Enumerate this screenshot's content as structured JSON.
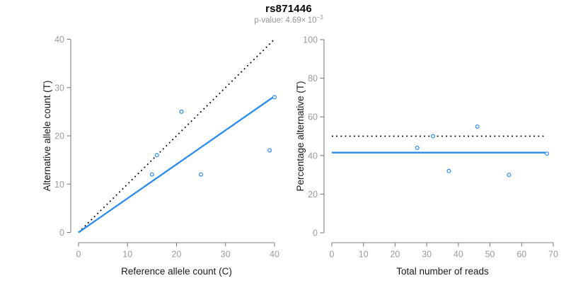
{
  "header": {
    "title": "rs871446",
    "p_value_label": "p-value: 4.69× 10",
    "p_value_exponent": "−3"
  },
  "colors": {
    "point_blue": "#2b8ceb",
    "solid_line_blue": "#2b8ceb",
    "dotted_line_black": "#000000",
    "axis_line_gray": "#808080",
    "tick_label_gray": "#9c9c9c",
    "axis_title_color": "#1a1a1a",
    "background": "#ffffff"
  },
  "chart_data": [
    {
      "type": "scatter",
      "name": "allele-counts-scatter",
      "title": "rs871446",
      "subtitle": "p-value: 4.69×10^-3",
      "xlabel": "Reference allele count (C)",
      "ylabel": "Alternative allele count (T)",
      "xlim": [
        0,
        40
      ],
      "ylim": [
        0,
        40
      ],
      "xticks": [
        0,
        10,
        20,
        30,
        40
      ],
      "yticks": [
        0,
        10,
        20,
        30,
        40
      ],
      "grid": false,
      "points": [
        [
          15,
          12
        ],
        [
          16,
          16
        ],
        [
          21,
          25
        ],
        [
          25,
          12
        ],
        [
          39,
          17
        ],
        [
          40,
          28
        ]
      ],
      "lines": [
        {
          "name": "identity-line",
          "style": "dotted",
          "color": "#000000",
          "x1": 0,
          "y1": 0,
          "x2": 40,
          "y2": 40
        },
        {
          "name": "fit-line",
          "style": "solid",
          "color": "#2b8ceb",
          "x1": 0,
          "y1": 0,
          "x2": 40,
          "y2": 28.2
        }
      ]
    },
    {
      "type": "scatter",
      "name": "percentage-alternative-scatter",
      "title": "",
      "xlabel": "Total number of reads",
      "ylabel": "Percentage alternative (T)",
      "xlim": [
        0,
        70
      ],
      "ylim": [
        0,
        100
      ],
      "xticks": [
        0,
        10,
        20,
        30,
        40,
        50,
        60,
        70
      ],
      "yticks": [
        0,
        20,
        40,
        60,
        80,
        100
      ],
      "grid": false,
      "points": [
        [
          27,
          44
        ],
        [
          32,
          50
        ],
        [
          37,
          32
        ],
        [
          46,
          55
        ],
        [
          56,
          30
        ],
        [
          68,
          41
        ]
      ],
      "lines": [
        {
          "name": "expected-50pct-line",
          "style": "dotted",
          "color": "#000000",
          "x1": 0,
          "y1": 50,
          "x2": 67.5,
          "y2": 50
        },
        {
          "name": "observed-pct-line",
          "style": "solid",
          "color": "#2b8ceb",
          "x1": 0,
          "y1": 41.5,
          "x2": 68,
          "y2": 41.5
        }
      ]
    }
  ]
}
